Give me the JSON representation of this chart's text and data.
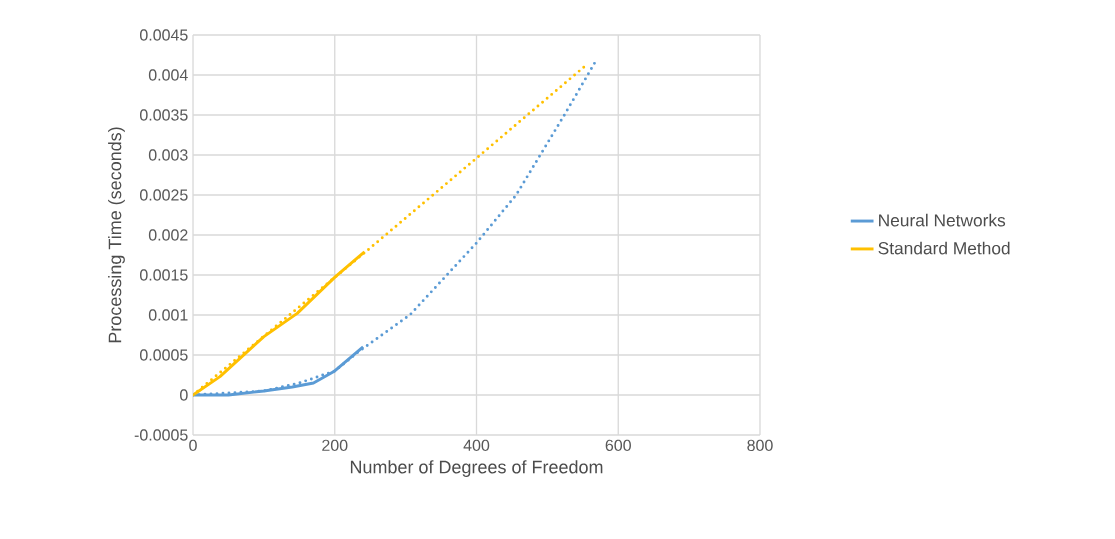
{
  "chart_data": {
    "type": "line",
    "xlabel": "Number of Degrees of Freedom",
    "ylabel": "Processing Time (seconds)",
    "xlim": [
      0,
      800
    ],
    "xticks": [
      0,
      200,
      400,
      600,
      800
    ],
    "ylim": [
      -0.0005,
      0.0045
    ],
    "yticks": [
      -0.0005,
      0,
      0.0005,
      0.001,
      0.0015,
      0.002,
      0.0025,
      0.003,
      0.0035,
      0.004,
      0.0045
    ],
    "grid": true,
    "legend": "right",
    "marker": "none",
    "series": [
      {
        "name": "Neural Networks",
        "color": "#5b9bd5",
        "line_style": "solid",
        "x": [
          0,
          50,
          100,
          140,
          170,
          200,
          220,
          240
        ],
        "values": [
          0,
          0,
          5e-05,
          0.0001,
          0.00015,
          0.0003,
          0.00045,
          0.0006
        ]
      },
      {
        "name": "Standard Method",
        "color": "#ffc000",
        "line_style": "solid",
        "x": [
          0,
          38,
          100,
          147,
          201,
          242
        ],
        "values": [
          0,
          0.00023,
          0.00073,
          0.00102,
          0.00148,
          0.00179
        ]
      },
      {
        "color": "#5b9bd5",
        "line_style": "dotted",
        "x": [
          0,
          100,
          150,
          200,
          235,
          306,
          400,
          456,
          524,
          570
        ],
        "values": [
          0,
          5e-05,
          0.00015,
          0.0003,
          0.00055,
          0.001,
          0.0019,
          0.0025,
          0.0035,
          0.0042
        ]
      },
      {
        "color": "#ffc000",
        "line_style": "dotted",
        "x": [
          0,
          245,
          400,
          553
        ],
        "values": [
          0,
          0.0018,
          0.00296,
          0.00411
        ]
      }
    ]
  }
}
